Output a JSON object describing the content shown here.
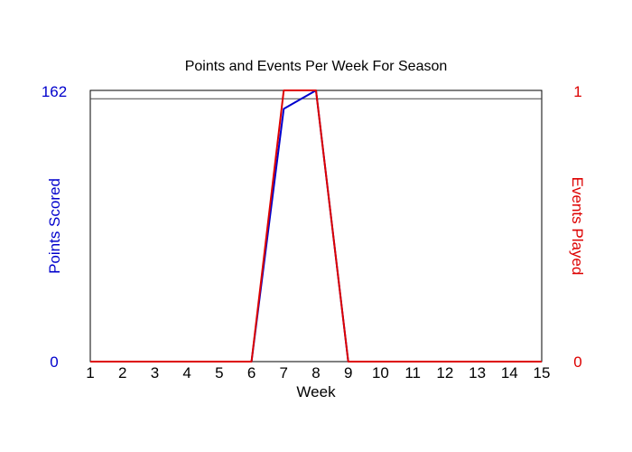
{
  "chart_data": {
    "type": "line",
    "title": "Points and Events Per Week For Season",
    "xlabel": "Week",
    "y_left_label": "Points Scored",
    "y_right_label": "Events Played",
    "x": [
      1,
      2,
      3,
      4,
      5,
      6,
      7,
      8,
      9,
      10,
      11,
      12,
      13,
      14,
      15
    ],
    "x_ticks": [
      "1",
      "2",
      "3",
      "4",
      "5",
      "6",
      "7",
      "8",
      "9",
      "10",
      "11",
      "12",
      "13",
      "14",
      "15"
    ],
    "y_left_ticks": [
      "0",
      "162"
    ],
    "y_right_ticks": [
      "0",
      "1"
    ],
    "y_left_lim": [
      0,
      162
    ],
    "y_right_lim": [
      0,
      1
    ],
    "reference_line_left": 157,
    "series": [
      {
        "axis": "left",
        "color": "#0000cc",
        "values": [
          0,
          0,
          0,
          0,
          0,
          0,
          151,
          162,
          0,
          0,
          0,
          0,
          0,
          0,
          0
        ]
      },
      {
        "axis": "right",
        "color": "#dd0000",
        "values": [
          0,
          0,
          0,
          0,
          0,
          0,
          1,
          1,
          0,
          0,
          0,
          0,
          0,
          0,
          0
        ]
      }
    ],
    "colors": {
      "left_axis": "#0000cc",
      "right_axis": "#dd0000",
      "frame": "#000000",
      "ref_line": "#444444"
    },
    "grid": false
  }
}
